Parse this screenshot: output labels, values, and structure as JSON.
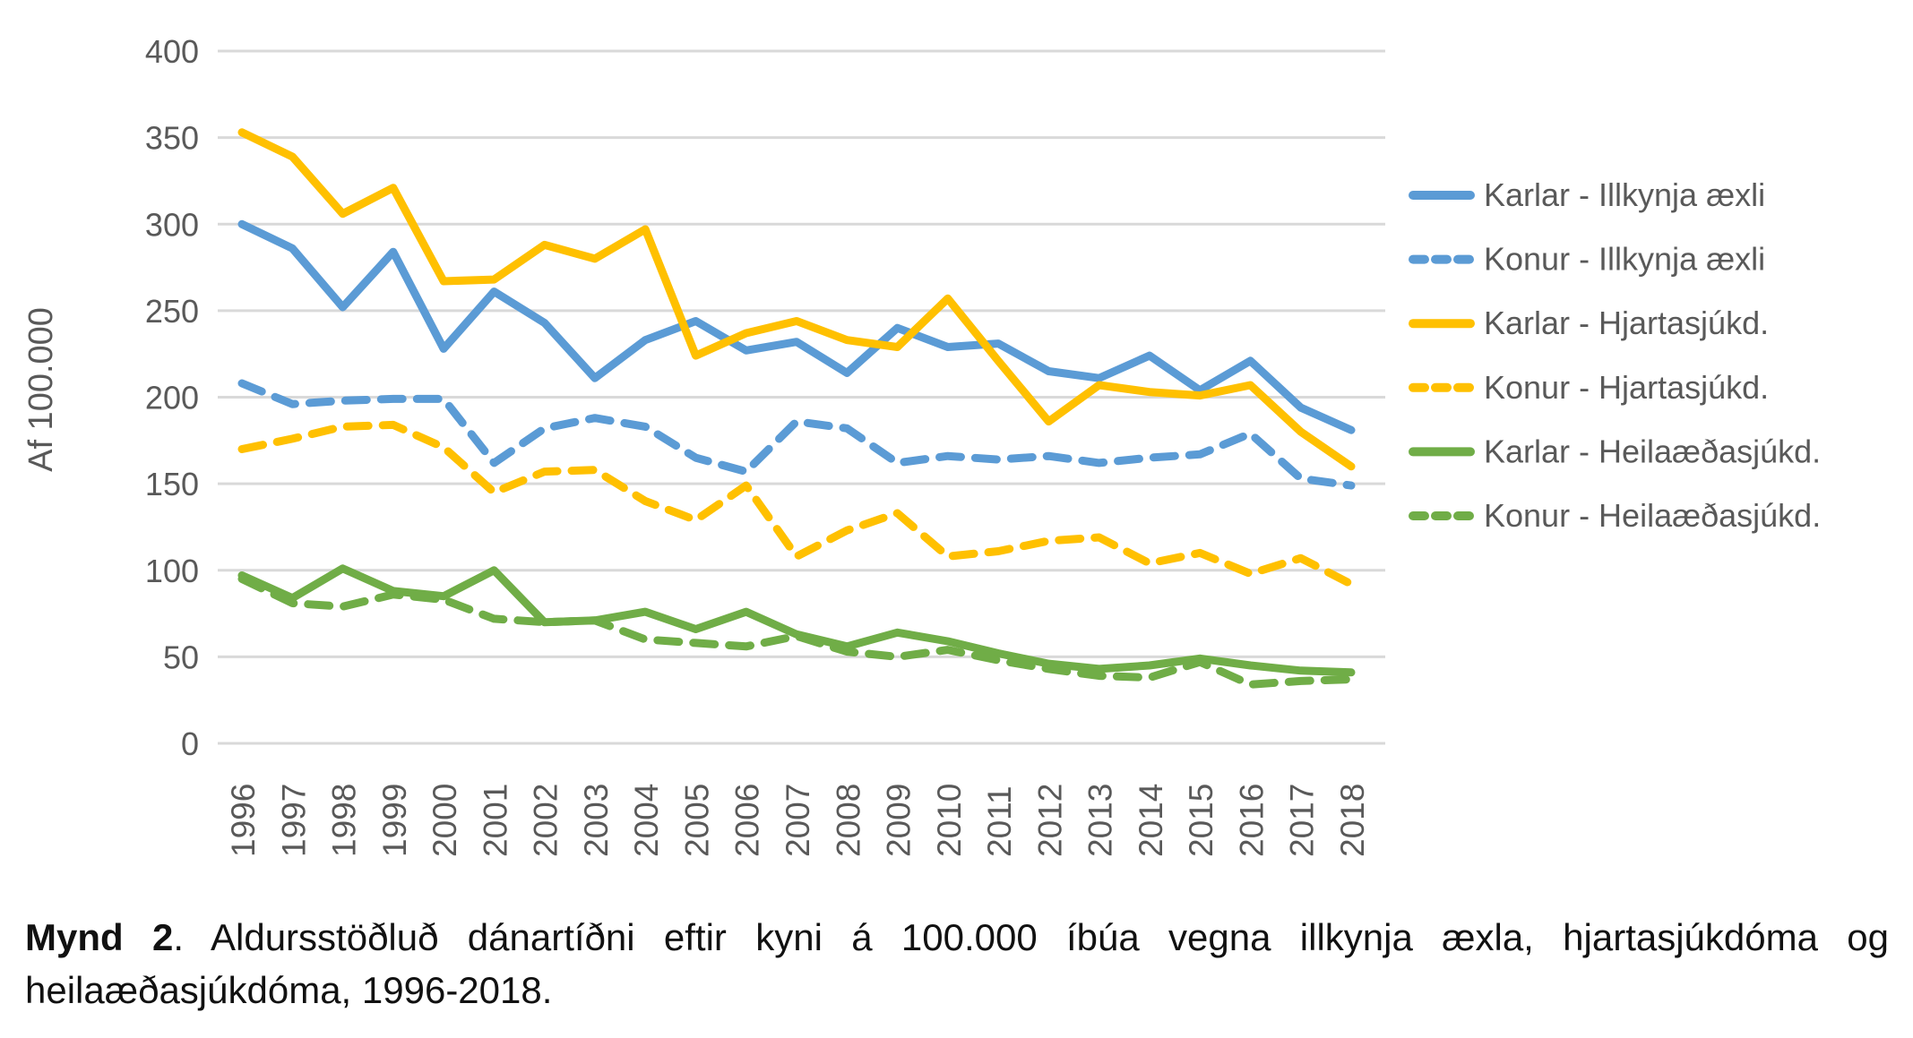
{
  "chart_data": {
    "type": "line",
    "title": "",
    "xlabel": "",
    "ylabel": "Af 100.000",
    "x": [
      "1996",
      "1997",
      "1998",
      "1999",
      "2000",
      "2001",
      "2002",
      "2003",
      "2004",
      "2005",
      "2006",
      "2007",
      "2008",
      "2009",
      "2010",
      "2011",
      "2012",
      "2013",
      "2014",
      "2015",
      "2016",
      "2017",
      "2018"
    ],
    "ylim": [
      0,
      400
    ],
    "ytick_step": 50,
    "grid": true,
    "legend_position": "right",
    "gridline_color": "#D9D9D9",
    "text_color": "#595959",
    "series": [
      {
        "name": "Karlar - Illkynja æxli",
        "color": "#5B9BD5",
        "dash": "solid",
        "values": [
          300,
          286,
          252,
          284,
          228,
          261,
          243,
          211,
          233,
          244,
          227,
          232,
          214,
          240,
          229,
          231,
          215,
          211,
          224,
          204,
          221,
          194,
          181
        ]
      },
      {
        "name": "Konur - Illkynja æxli",
        "color": "#5B9BD5",
        "dash": "dashed",
        "values": [
          208,
          196,
          198,
          199,
          199,
          162,
          182,
          188,
          183,
          165,
          157,
          186,
          182,
          162,
          166,
          164,
          166,
          162,
          165,
          167,
          179,
          153,
          149
        ]
      },
      {
        "name": "Karlar - Hjartasjúkd.",
        "color": "#FFC000",
        "dash": "solid",
        "values": [
          353,
          339,
          306,
          321,
          267,
          268,
          288,
          280,
          297,
          224,
          237,
          244,
          233,
          229,
          257,
          221,
          186,
          207,
          203,
          201,
          207,
          180,
          160
        ]
      },
      {
        "name": "Konur - Hjartasjúkd.",
        "color": "#FFC000",
        "dash": "dashed",
        "values": [
          170,
          176,
          183,
          184,
          171,
          145,
          157,
          158,
          140,
          129,
          149,
          108,
          123,
          133,
          108,
          111,
          117,
          119,
          104,
          110,
          98,
          107,
          92
        ]
      },
      {
        "name": "Karlar - Heilaæðasjúkd.",
        "color": "#70AD47",
        "dash": "solid",
        "values": [
          97,
          84,
          101,
          88,
          85,
          100,
          70,
          71,
          76,
          66,
          76,
          63,
          56,
          64,
          59,
          52,
          46,
          43,
          45,
          49,
          45,
          42,
          41
        ]
      },
      {
        "name": "Konur - Heilaæðasjúkd.",
        "color": "#70AD47",
        "dash": "dashed",
        "values": [
          95,
          81,
          79,
          86,
          83,
          72,
          70,
          71,
          60,
          58,
          56,
          62,
          53,
          50,
          54,
          48,
          43,
          39,
          38,
          47,
          34,
          36,
          37
        ]
      }
    ]
  },
  "caption": {
    "bold": "Mynd 2",
    "line1_rest": ". Aldursstöðluð dánartíðni eftir kyni á 100.000 íbúa vegna illkynja æxla, hjartasjúkdóma og",
    "line2": "heilaæðasjúkdóma, 1996-2018."
  }
}
